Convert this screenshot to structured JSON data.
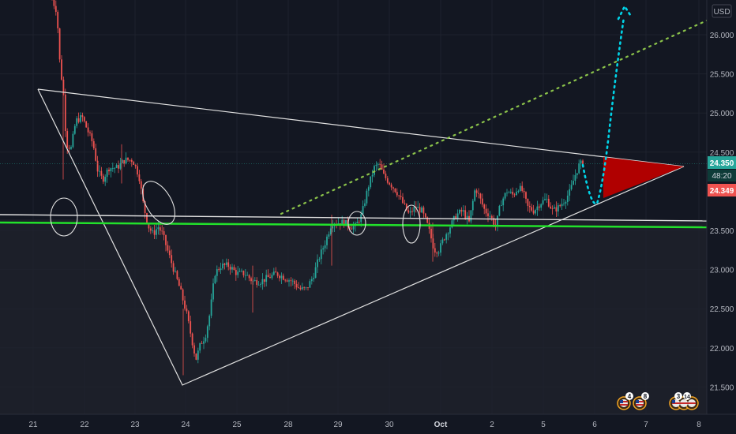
{
  "currency_label": "USD",
  "colors": {
    "background": "#131722",
    "up": "#26a69a",
    "down": "#ef5350",
    "support": "#22e12b",
    "prediction": "#00d4e8",
    "trend": "#8bc34a",
    "drawing": "#e0e0e0",
    "zone": "#b00000"
  },
  "chart_data": {
    "type": "candlestick",
    "x_ticks": [
      "21",
      "22",
      "23",
      "24",
      "25",
      "28",
      "29",
      "30",
      "Oct",
      "2",
      "5",
      "6",
      "7",
      "8"
    ],
    "y_ticks": [
      "26.000",
      "25.500",
      "25.000",
      "24.500",
      "23.500",
      "23.000",
      "22.500",
      "22.000",
      "21.500"
    ],
    "ylim": [
      21.3,
      26.3
    ],
    "last_price": "24.350",
    "countdown": "48:20",
    "bid_price": "24.349",
    "support_level": 23.55,
    "event_markers": [
      {
        "label": "4"
      },
      {
        "label": "8"
      },
      {
        "label": "3"
      },
      {
        "label": "14"
      }
    ]
  }
}
